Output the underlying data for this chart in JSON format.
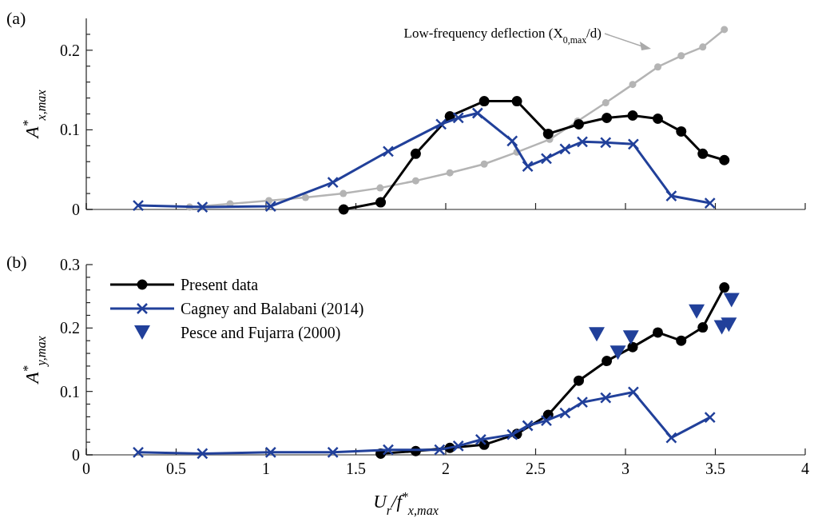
{
  "chart_data": [
    {
      "type": "line",
      "title": "(a)",
      "ylabel": "A$^{*}$$_{x,max}$",
      "xlim": [
        0,
        4
      ],
      "xticks": [
        0,
        0.5,
        1,
        1.5,
        2,
        2.5,
        3,
        3.5,
        4
      ],
      "ylim": [
        0,
        0.24
      ],
      "yticks": [
        0,
        {
          "value": 0.02,
          "label": null
        },
        {
          "value": 0.04,
          "label": null
        },
        {
          "value": 0.06,
          "label": null
        },
        {
          "value": 0.08,
          "label": null
        },
        0.1,
        {
          "value": 0.12,
          "label": null
        },
        {
          "value": 0.14,
          "label": null
        },
        {
          "value": 0.16,
          "label": null
        },
        {
          "value": 0.18,
          "label": null
        },
        0.2,
        {
          "value": 0.22,
          "label": null
        }
      ],
      "tick_labels": "y",
      "grid": false,
      "legend": false,
      "annotations": [
        "Low-frequency deflection (X$_{0,max}$/d)"
      ],
      "series": [
        {
          "color": "#b4b4b4",
          "marker": "circle",
          "x": [
            0.575,
            0.8,
            1.016,
            1.22,
            1.43,
            1.635,
            1.833,
            2.023,
            2.214,
            2.396,
            2.578,
            2.734,
            2.89,
            3.04,
            3.18,
            3.31,
            3.43,
            3.55
          ],
          "values": [
            0.003,
            0.007,
            0.011,
            0.015,
            0.02,
            0.027,
            0.036,
            0.046,
            0.057,
            0.072,
            0.088,
            0.111,
            0.134,
            0.157,
            0.179,
            0.193,
            0.204,
            0.226
          ]
        },
        {
          "color": "#000000",
          "marker": "circle",
          "x": [
            1.432,
            1.638,
            1.833,
            2.023,
            2.214,
            2.396,
            2.57,
            2.74,
            2.896,
            3.04,
            3.18,
            3.31,
            3.43,
            3.55
          ],
          "values": [
            0,
            0.009,
            0.07,
            0.117,
            0.136,
            0.136,
            0.095,
            0.107,
            0.115,
            0.118,
            0.114,
            0.098,
            0.07,
            0.062
          ]
        },
        {
          "color": "#21409a",
          "marker": "cross",
          "x": [
            0.289,
            0.646,
            1.026,
            1.372,
            1.68,
            1.974,
            2.07,
            2.177,
            2.37,
            2.456,
            2.56,
            2.664,
            2.76,
            2.89,
            3.044,
            3.255,
            3.47
          ],
          "values": [
            0.005,
            0.003,
            0.004,
            0.034,
            0.073,
            0.107,
            0.115,
            0.121,
            0.086,
            0.054,
            0.064,
            0.076,
            0.085,
            0.084,
            0.082,
            0.017,
            0.008
          ]
        }
      ]
    },
    {
      "type": "line",
      "title": "(b)",
      "xlabel": "U$_{r}$/f$^{*}$$_{x,max}$",
      "ylabel": "A$^{*}$$_{y,max}$",
      "xlim": [
        0,
        4
      ],
      "xticks": [
        0,
        0.5,
        1,
        1.5,
        2,
        2.5,
        3,
        3.5,
        4
      ],
      "ylim": [
        0,
        0.3
      ],
      "yticks": [
        0,
        {
          "value": 0.02,
          "label": null
        },
        {
          "value": 0.04,
          "label": null
        },
        {
          "value": 0.06,
          "label": null
        },
        {
          "value": 0.08,
          "label": null
        },
        0.1,
        {
          "value": 0.12,
          "label": null
        },
        {
          "value": 0.14,
          "label": null
        },
        {
          "value": 0.16,
          "label": null
        },
        {
          "value": 0.18,
          "label": null
        },
        0.2,
        {
          "value": 0.22,
          "label": null
        },
        {
          "value": 0.24,
          "label": null
        },
        {
          "value": 0.26,
          "label": null
        },
        {
          "value": 0.28,
          "label": null
        },
        0.3
      ],
      "grid": false,
      "legend": "top left",
      "series": [
        {
          "name": "Present data",
          "color": "#000000",
          "marker": "circle",
          "x": [
            1.638,
            1.833,
            2.023,
            2.214,
            2.396,
            2.57,
            2.74,
            2.896,
            3.04,
            3.18,
            3.31,
            3.43,
            3.55
          ],
          "values": [
            0.002,
            0.006,
            0.011,
            0.016,
            0.033,
            0.063,
            0.117,
            0.148,
            0.17,
            0.193,
            0.18,
            0.201,
            0.264
          ]
        },
        {
          "name": "Cagney and Balabani (2014)",
          "color": "#21409a",
          "marker": "cross",
          "x": [
            0.289,
            0.646,
            1.026,
            1.372,
            1.68,
            1.966,
            2.07,
            2.195,
            2.37,
            2.456,
            2.56,
            2.664,
            2.76,
            2.89,
            3.044,
            3.255,
            3.47
          ],
          "values": [
            0.004,
            0.002,
            0.004,
            0.004,
            0.008,
            0.008,
            0.014,
            0.024,
            0.032,
            0.046,
            0.054,
            0.066,
            0.083,
            0.09,
            0.099,
            0.027,
            0.059
          ]
        },
        {
          "name": "Pesce and Fujarra (2000)",
          "type": "scatter",
          "color": "#21409a",
          "marker": "triangle",
          "x": [
            2.84,
            2.958,
            3.03,
            3.396,
            3.536,
            3.575,
            3.59
          ],
          "values": [
            0.19,
            0.161,
            0.185,
            0.226,
            0.201,
            0.205,
            0.244
          ]
        }
      ]
    }
  ]
}
